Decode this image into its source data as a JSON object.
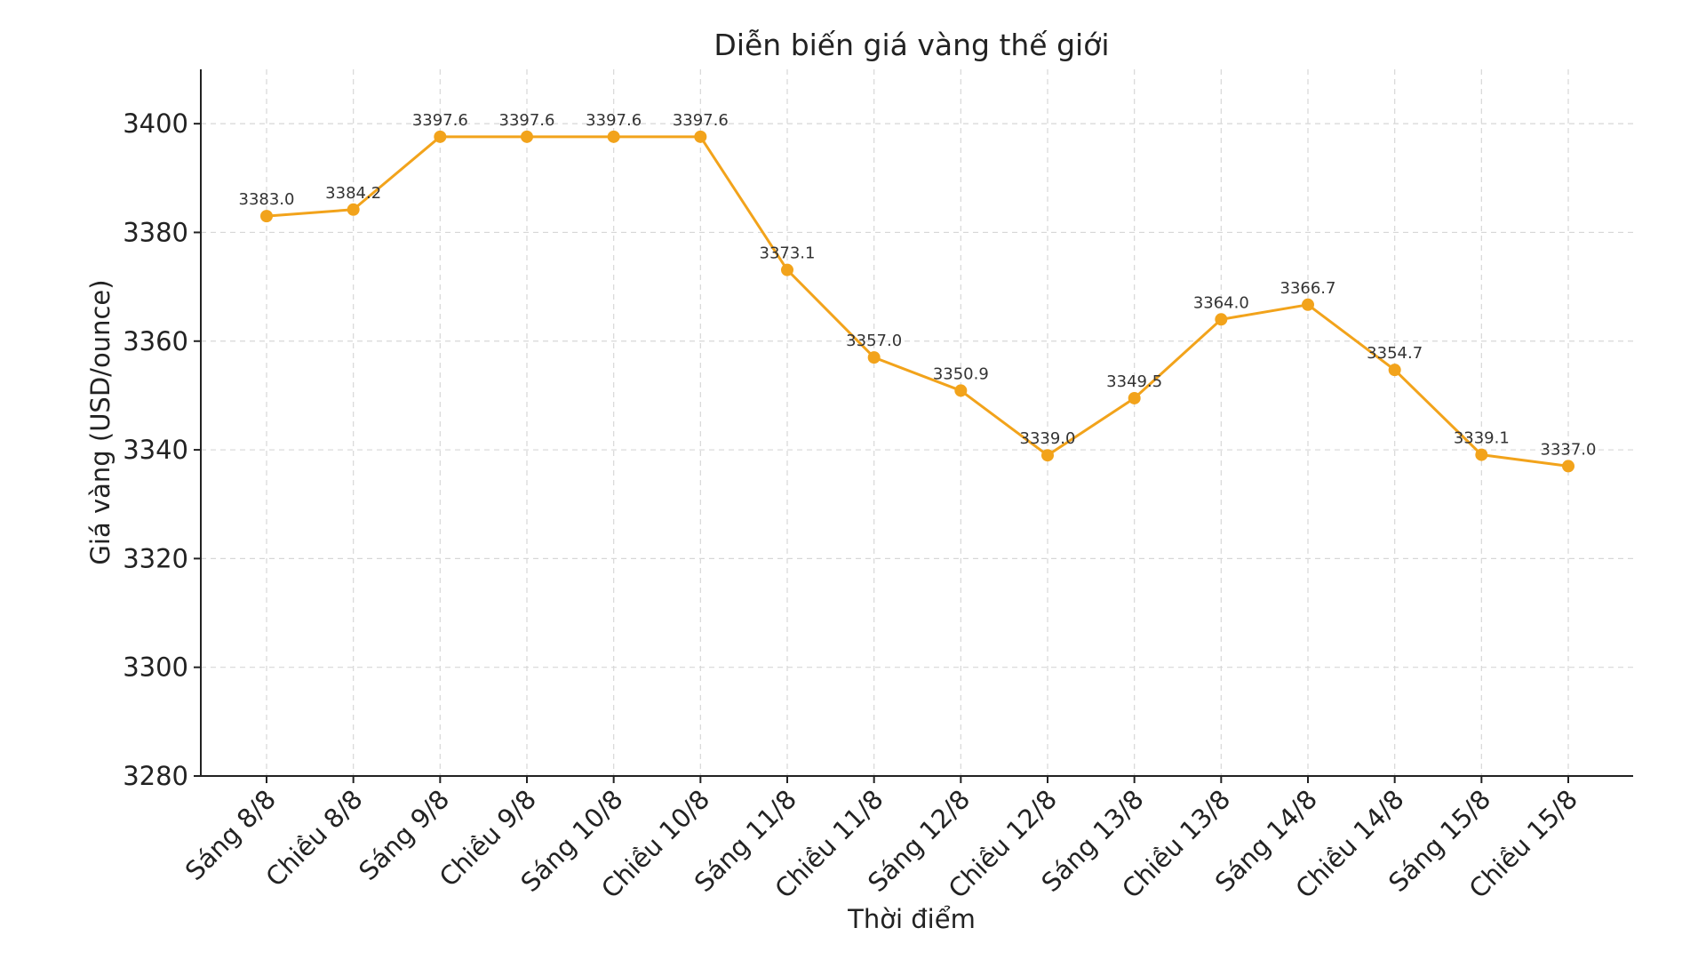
{
  "chart_data": {
    "type": "line",
    "title": "Diễn biến giá vàng thế giới",
    "xlabel": "Thời điểm",
    "ylabel": "Giá vàng (USD/ounce)",
    "categories": [
      "Sáng 8/8",
      "Chiều 8/8",
      "Sáng 9/8",
      "Chiều 9/8",
      "Sáng 10/8",
      "Chiều 10/8",
      "Sáng 11/8",
      "Chiều 11/8",
      "Sáng 12/8",
      "Chiều 12/8",
      "Sáng 13/8",
      "Chiều 13/8",
      "Sáng 14/8",
      "Chiều 14/8",
      "Sáng 15/8",
      "Chiều 15/8"
    ],
    "series": [
      {
        "values": [
          3383.0,
          3384.2,
          3397.6,
          3397.6,
          3397.6,
          3397.6,
          3373.1,
          3357.0,
          3350.9,
          3339.0,
          3349.5,
          3364.0,
          3366.7,
          3354.7,
          3339.1,
          3337.0
        ],
        "data_labels": [
          "3383.0",
          "3384.2",
          "3397.6",
          "3397.6",
          "3397.6",
          "3397.6",
          "3373.1",
          "3357.0",
          "3350.9",
          "3339.0",
          "3349.5",
          "3364.0",
          "3366.7",
          "3354.7",
          "3339.1",
          "3337.0"
        ]
      }
    ],
    "ylim": [
      3280,
      3410
    ],
    "yticks": [
      3280,
      3300,
      3320,
      3340,
      3360,
      3380,
      3400
    ],
    "ytick_labels": [
      "3280",
      "3300",
      "3320",
      "3340",
      "3360",
      "3380",
      "3400"
    ],
    "grid": true,
    "line_color": "#f2a31b"
  }
}
